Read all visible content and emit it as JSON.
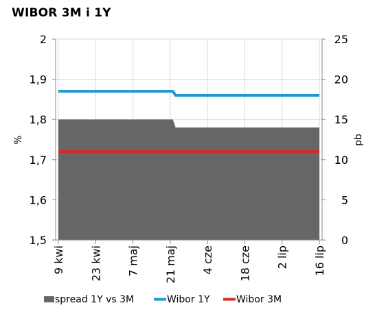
{
  "chart_data": {
    "type": "line",
    "title": "WIBOR 3M i 1Y",
    "ylabel": "%",
    "y2label": "pb",
    "ylim": [
      1.5,
      2.0
    ],
    "y2lim": [
      0,
      25
    ],
    "y_ticks": [
      "1,5",
      "1,6",
      "1,7",
      "1,8",
      "1,9",
      "2"
    ],
    "y2_ticks": [
      "0",
      "5",
      "10",
      "15",
      "20",
      "25"
    ],
    "y_tick_values": [
      1.5,
      1.6,
      1.7,
      1.8,
      1.9,
      2.0
    ],
    "y2_tick_values": [
      0,
      5,
      10,
      15,
      20,
      25
    ],
    "x_domain": [
      "2019-04-09",
      "2019-07-16"
    ],
    "x_ticks": [
      {
        "date": "2019-04-09",
        "label": "9 kwi"
      },
      {
        "date": "2019-04-23",
        "label": "23 kwi"
      },
      {
        "date": "2019-05-07",
        "label": "7 maj"
      },
      {
        "date": "2019-05-21",
        "label": "21 maj"
      },
      {
        "date": "2019-06-04",
        "label": "4 cze"
      },
      {
        "date": "2019-06-18",
        "label": "18 cze"
      },
      {
        "date": "2019-07-02",
        "label": "2 lip"
      },
      {
        "date": "2019-07-16",
        "label": "16 lip"
      }
    ],
    "series": [
      {
        "name": "spread 1Y vs 3M",
        "kind": "area",
        "axis": "right",
        "color": "#666666",
        "points": [
          {
            "x": "2019-04-09",
            "y": 15
          },
          {
            "x": "2019-05-22",
            "y": 15
          },
          {
            "x": "2019-05-23",
            "y": 14
          },
          {
            "x": "2019-07-16",
            "y": 14
          }
        ]
      },
      {
        "name": "Wibor 1Y",
        "kind": "line",
        "axis": "left",
        "color": "#1f97d4",
        "points": [
          {
            "x": "2019-04-09",
            "y": 1.87
          },
          {
            "x": "2019-05-22",
            "y": 1.87
          },
          {
            "x": "2019-05-23",
            "y": 1.86
          },
          {
            "x": "2019-07-16",
            "y": 1.86
          }
        ]
      },
      {
        "name": "Wibor 3M",
        "kind": "line",
        "axis": "left",
        "color": "#d42a2a",
        "points": [
          {
            "x": "2019-04-09",
            "y": 1.72
          },
          {
            "x": "2019-07-16",
            "y": 1.72
          }
        ]
      }
    ],
    "grid": true,
    "legend_position": "bottom"
  }
}
